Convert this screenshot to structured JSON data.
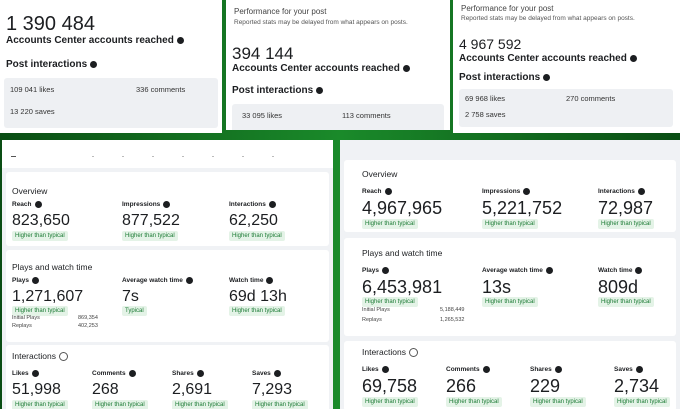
{
  "top_panels": [
    {
      "value": "1 390 484",
      "metric": "Accounts Center accounts reached",
      "section": "Post interactions",
      "stats": [
        "109 041 likes",
        "336 comments",
        "13 220 saves"
      ]
    },
    {
      "heading": "Performance for your post",
      "note": "Reported stats may be delayed from what appears on posts.",
      "value": "394 144",
      "metric": "Accounts Center accounts reached",
      "section": "Post interactions",
      "stats": [
        "33 095 likes",
        "113 comments"
      ]
    },
    {
      "heading": "Performance for your post",
      "note": "Reported stats may be delayed from what appears on posts.",
      "value": "4 967 592",
      "metric": "Accounts Center accounts reached",
      "section": "Post interactions",
      "stats": [
        "69 968 likes",
        "270 comments",
        "2 758 saves"
      ]
    }
  ],
  "insight_panels": [
    {
      "overview": {
        "title": "Overview",
        "metrics": [
          {
            "label": "Reach",
            "value": "823,650",
            "badge": "Higher than typical"
          },
          {
            "label": "Impressions",
            "value": "877,522",
            "badge": "Higher than typical"
          },
          {
            "label": "Interactions",
            "value": "62,250",
            "badge": "Higher than typical"
          }
        ]
      },
      "plays": {
        "title": "Plays and watch time",
        "metrics": [
          {
            "label": "Plays",
            "value": "1,271,607",
            "badge": "Higher than typical"
          },
          {
            "label": "Average watch time",
            "value": "7s",
            "badge": "Typical"
          },
          {
            "label": "Watch time",
            "value": "69d 13h",
            "badge": "Higher than typical"
          }
        ],
        "details": [
          {
            "label": "Initial Plays",
            "value": "869,354"
          },
          {
            "label": "Replays",
            "value": "402,253"
          }
        ]
      },
      "interactions": {
        "title": "Interactions",
        "metrics": [
          {
            "label": "Likes",
            "value": "51,998",
            "badge": "Higher than typical"
          },
          {
            "label": "Comments",
            "value": "268",
            "badge": "Higher than typical"
          },
          {
            "label": "Shares",
            "value": "2,691",
            "badge": "Higher than typical"
          },
          {
            "label": "Saves",
            "value": "7,293",
            "badge": "Higher than typical"
          }
        ]
      }
    },
    {
      "overview": {
        "title": "Overview",
        "metrics": [
          {
            "label": "Reach",
            "value": "4,967,965",
            "badge": "Higher than typical"
          },
          {
            "label": "Impressions",
            "value": "5,221,752",
            "badge": "Higher than typical"
          },
          {
            "label": "Interactions",
            "value": "72,987",
            "badge": "Higher than typical"
          }
        ]
      },
      "plays": {
        "title": "Plays and watch time",
        "metrics": [
          {
            "label": "Plays",
            "value": "6,453,981",
            "badge": "Higher than typical"
          },
          {
            "label": "Average watch time",
            "value": "13s",
            "badge": "Higher than typical"
          },
          {
            "label": "Watch time",
            "value": "809d",
            "badge": "Higher than typical"
          }
        ],
        "details": [
          {
            "label": "Initial Plays",
            "value": "5,188,449"
          },
          {
            "label": "Replays",
            "value": "1,265,532"
          }
        ]
      },
      "interactions": {
        "title": "Interactions",
        "metrics": [
          {
            "label": "Likes",
            "value": "69,758",
            "badge": "Higher than typical"
          },
          {
            "label": "Comments",
            "value": "266",
            "badge": "Higher than typical"
          },
          {
            "label": "Shares",
            "value": "229",
            "badge": "Higher than typical"
          },
          {
            "label": "Saves",
            "value": "2,734",
            "badge": "Higher than typical"
          }
        ]
      }
    }
  ]
}
